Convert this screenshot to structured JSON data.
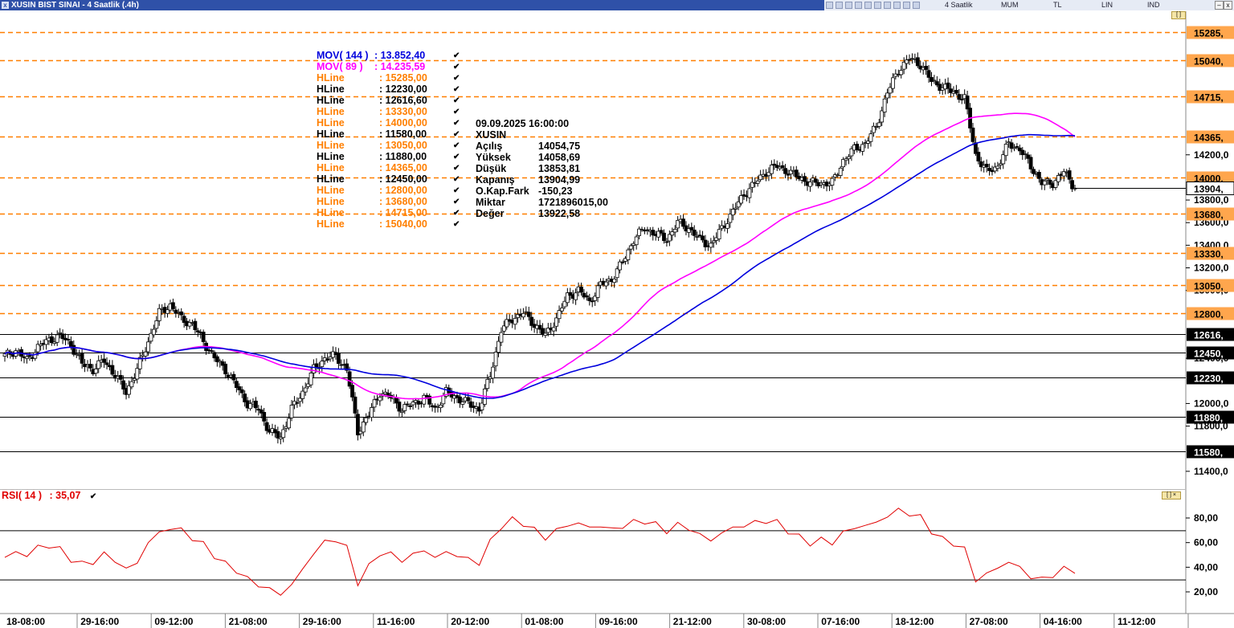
{
  "window": {
    "title": "XUSIN BIST SINAI - 4 Saatlik (.4h)",
    "toolbar": {
      "period": "4 Saatlik",
      "style": "MUM",
      "currency": "TL",
      "scale": "LIN",
      "mode": "IND"
    }
  },
  "colors": {
    "up_candle": "#ffffff",
    "down_candle": "#000000",
    "mov144": "#0000dd",
    "mov89": "#ff00ff",
    "hline_orange": "#ff7f00",
    "hline_black": "#000000",
    "rsi": "#e00000",
    "price_tag_orange_bg": "#ffa64d"
  },
  "legend": [
    {
      "name": "MOV( 144 )",
      "value": ": 13.852,40",
      "color": "#0000dd"
    },
    {
      "name": "MOV( 89 )",
      "value": ": 14.235,59",
      "color": "#ff00ff"
    },
    {
      "name": "HLine",
      "value": ": 15285,00",
      "color": "#ff7f00"
    },
    {
      "name": "HLine",
      "value": ": 12230,00",
      "color": "#000000"
    },
    {
      "name": "HLine",
      "value": ": 12616,60",
      "color": "#000000"
    },
    {
      "name": "HLine",
      "value": ": 13330,00",
      "color": "#ff7f00"
    },
    {
      "name": "HLine",
      "value": ": 14000,00",
      "color": "#ff7f00"
    },
    {
      "name": "HLine",
      "value": ": 11580,00",
      "color": "#000000"
    },
    {
      "name": "HLine",
      "value": ": 13050,00",
      "color": "#ff7f00"
    },
    {
      "name": "HLine",
      "value": ": 11880,00",
      "color": "#000000"
    },
    {
      "name": "HLine",
      "value": ": 14365,00",
      "color": "#ff7f00"
    },
    {
      "name": "HLine",
      "value": ": 12450,00",
      "color": "#000000"
    },
    {
      "name": "HLine",
      "value": ": 12800,00",
      "color": "#ff7f00"
    },
    {
      "name": "HLine",
      "value": ": 13680,00",
      "color": "#ff7f00"
    },
    {
      "name": "HLine",
      "value": ": 14715,00",
      "color": "#ff7f00"
    },
    {
      "name": "HLine",
      "value": ": 15040,00",
      "color": "#ff7f00"
    }
  ],
  "info_box": {
    "datetime": "09.09.2025  16:00:00",
    "symbol": "XUSIN",
    "rows": [
      {
        "label": "Açılış",
        "value": "14054,75"
      },
      {
        "label": "Yüksek",
        "value": "14058,69"
      },
      {
        "label": "Düşük",
        "value": "13853,81"
      },
      {
        "label": "Kapanış",
        "value": "13904,99"
      },
      {
        "label": "O.Kap.Fark",
        "value": "-150,23"
      },
      {
        "label": "Miktar",
        "value": "1721896015,00"
      },
      {
        "label": "Değer",
        "value": "13922,58"
      }
    ]
  },
  "rsi_label": {
    "name": "RSI( 14 )",
    "value": ": 35,07"
  },
  "chart_data": [
    {
      "type": "candlestick",
      "title": "XUSIN BIST SINAI - 4 Saatlik (.4h)",
      "ylim": [
        11250,
        15470
      ],
      "y_ticks": [
        "14200,0",
        "13800,0",
        "13600,0",
        "13400,0",
        "13200,0",
        "13000,0",
        "12400,0",
        "12000,0",
        "11800,0",
        "11400,0"
      ],
      "y_tick_values": [
        14200,
        13800,
        13600,
        13400,
        13200,
        13000,
        12400,
        12000,
        11800,
        11400
      ],
      "x_ticks": [
        "18-08:00",
        "29-16:00",
        "09-12:00",
        "21-08:00",
        "29-16:00",
        "11-16:00",
        "20-12:00",
        "01-08:00",
        "09-16:00",
        "21-12:00",
        "30-08:00",
        "07-16:00",
        "18-12:00",
        "27-08:00",
        "04-16:00",
        "11-12:00"
      ],
      "hlines": [
        {
          "value": 15285,
          "label": "15285,",
          "style": "dashed",
          "color": "orange"
        },
        {
          "value": 15040,
          "label": "15040,",
          "style": "dashed",
          "color": "orange"
        },
        {
          "value": 14715,
          "label": "14715,",
          "style": "dashed",
          "color": "orange"
        },
        {
          "value": 14365,
          "label": "14365,",
          "style": "dashed",
          "color": "orange"
        },
        {
          "value": 14000,
          "label": "14000,",
          "style": "dashed",
          "color": "orange"
        },
        {
          "value": 13680,
          "label": "13680,",
          "style": "dashed",
          "color": "orange"
        },
        {
          "value": 13330,
          "label": "13330,",
          "style": "dashed",
          "color": "orange"
        },
        {
          "value": 13050,
          "label": "13050,",
          "style": "dashed",
          "color": "orange"
        },
        {
          "value": 12800,
          "label": "12800,",
          "style": "dashed",
          "color": "orange"
        },
        {
          "value": 12616.6,
          "label": "12616,",
          "style": "solid",
          "color": "black"
        },
        {
          "value": 12450,
          "label": "12450,",
          "style": "solid",
          "color": "black"
        },
        {
          "value": 12230,
          "label": "12230,",
          "style": "solid",
          "color": "black"
        },
        {
          "value": 11880,
          "label": "11880,",
          "style": "solid",
          "color": "black"
        },
        {
          "value": 11580,
          "label": "11580,",
          "style": "solid",
          "color": "black"
        }
      ],
      "last_price": {
        "value": 13904.99,
        "label": "13904,"
      },
      "close_path": [
        12420,
        12470,
        12380,
        12500,
        12560,
        12600,
        12520,
        12350,
        12300,
        12380,
        12250,
        12100,
        12300,
        12550,
        12800,
        12870,
        12750,
        12700,
        12550,
        12400,
        12300,
        12150,
        12000,
        11950,
        11750,
        11700,
        11950,
        12100,
        12300,
        12400,
        12420,
        12300,
        11750,
        11900,
        12100,
        12050,
        11950,
        12000,
        12050,
        11950,
        12100,
        12050,
        12000,
        11950,
        12250,
        12650,
        12750,
        12800,
        12700,
        12600,
        12750,
        12950,
        13000,
        12900,
        13050,
        13100,
        13250,
        13450,
        13550,
        13500,
        13450,
        13600,
        13550,
        13450,
        13400,
        13550,
        13700,
        13850,
        13950,
        14050,
        14100,
        14050,
        14000,
        13950,
        13950,
        13950,
        14150,
        14250,
        14300,
        14450,
        14750,
        14950,
        15050,
        15000,
        14850,
        14800,
        14750,
        14700,
        14200,
        14050,
        14100,
        14300,
        14250,
        14100,
        13950,
        13950,
        14050,
        13905
      ],
      "series": [
        {
          "name": "MOV( 144 )",
          "last": 13852.4
        },
        {
          "name": "MOV( 89 )",
          "last": 14235.59
        }
      ]
    },
    {
      "type": "line",
      "series_name": "RSI( 14 )",
      "ylim": [
        5,
        95
      ],
      "y_ticks": [
        "80,00",
        "60,00",
        "40,00",
        "20,00"
      ],
      "y_tick_values": [
        80,
        60,
        40,
        20
      ],
      "hlines": [
        70,
        30
      ],
      "values": [
        48,
        52,
        50,
        56,
        58,
        54,
        47,
        42,
        45,
        50,
        46,
        38,
        44,
        60,
        68,
        72,
        70,
        64,
        58,
        50,
        42,
        38,
        30,
        26,
        22,
        18,
        26,
        38,
        52,
        60,
        63,
        55,
        28,
        40,
        52,
        50,
        46,
        50,
        54,
        48,
        52,
        50,
        46,
        44,
        60,
        74,
        78,
        76,
        70,
        64,
        70,
        74,
        76,
        72,
        74,
        70,
        74,
        76,
        78,
        74,
        70,
        74,
        72,
        66,
        62,
        68,
        72,
        74,
        76,
        78,
        76,
        70,
        64,
        60,
        62,
        60,
        68,
        72,
        74,
        76,
        82,
        86,
        84,
        80,
        70,
        62,
        60,
        54,
        30,
        34,
        40,
        44,
        40,
        32,
        30,
        34,
        38,
        35.07
      ],
      "last": 35.07
    }
  ]
}
